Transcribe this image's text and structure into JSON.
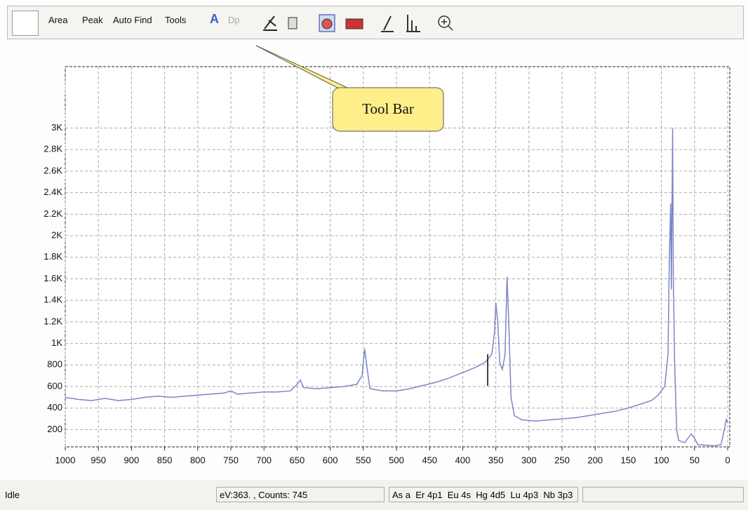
{
  "toolbar": {
    "buttons": [
      "Area",
      "Peak",
      "Auto Find",
      "Tools"
    ],
    "disabled": "Dp"
  },
  "callout": "Tool Bar",
  "chart_data": {
    "type": "line",
    "x": [
      1000,
      980,
      960,
      940,
      920,
      900,
      880,
      860,
      840,
      820,
      800,
      780,
      760,
      750,
      740,
      720,
      700,
      680,
      660,
      650,
      645,
      640,
      620,
      600,
      580,
      560,
      552,
      548,
      544,
      540,
      520,
      500,
      480,
      460,
      440,
      420,
      400,
      380,
      365,
      356,
      352,
      350,
      347,
      344,
      340,
      336,
      333,
      330,
      327,
      322,
      310,
      290,
      270,
      250,
      230,
      210,
      190,
      170,
      150,
      130,
      115,
      105,
      95,
      90,
      88,
      86,
      85,
      83,
      82,
      80,
      77,
      74,
      65,
      55,
      50,
      45,
      20,
      10,
      5,
      2,
      0
    ],
    "series": [
      {
        "color": "#7b86c8",
        "values": [
          500,
          480,
          470,
          490,
          470,
          480,
          500,
          510,
          500,
          510,
          520,
          530,
          540,
          560,
          530,
          540,
          550,
          550,
          560,
          620,
          660,
          590,
          580,
          590,
          600,
          620,
          700,
          950,
          750,
          580,
          560,
          560,
          580,
          610,
          640,
          680,
          730,
          780,
          830,
          900,
          1100,
          1380,
          1200,
          820,
          760,
          900,
          1620,
          1100,
          500,
          330,
          290,
          280,
          290,
          300,
          310,
          330,
          350,
          370,
          400,
          440,
          470,
          520,
          600,
          900,
          1800,
          2300,
          1500,
          3000,
          1600,
          800,
          200,
          100,
          80,
          160,
          120,
          60,
          50,
          60,
          200,
          300,
          260
        ]
      }
    ],
    "xlim": [
      1000,
      0
    ],
    "xticks": [
      1000,
      950,
      900,
      850,
      800,
      750,
      700,
      650,
      600,
      550,
      500,
      450,
      400,
      350,
      300,
      250,
      200,
      150,
      100,
      50,
      0
    ],
    "ylim": [
      40,
      3570
    ],
    "yticks": [
      200,
      400,
      600,
      800,
      {
        "value": 1000,
        "label": "1K"
      },
      {
        "value": 1200,
        "label": "1.2K"
      },
      {
        "value": 1400,
        "label": "1.4K"
      },
      {
        "value": 1600,
        "label": "1.6K"
      },
      {
        "value": 1800,
        "label": "1.8K"
      },
      {
        "value": 2000,
        "label": "2K"
      },
      {
        "value": 2200,
        "label": "2.2K"
      },
      {
        "value": 2400,
        "label": "2.4K"
      },
      {
        "value": 2600,
        "label": "2.6K"
      },
      {
        "value": 2800,
        "label": "2.8K"
      },
      {
        "value": 3000,
        "label": "3K"
      }
    ],
    "grid": true
  },
  "status": [
    "Idle",
    "eV:363. , Counts: 745",
    "As a  Er 4p1  Eu 4s  Hg 4d5  Lu 4p3  Nb 3p3"
  ]
}
